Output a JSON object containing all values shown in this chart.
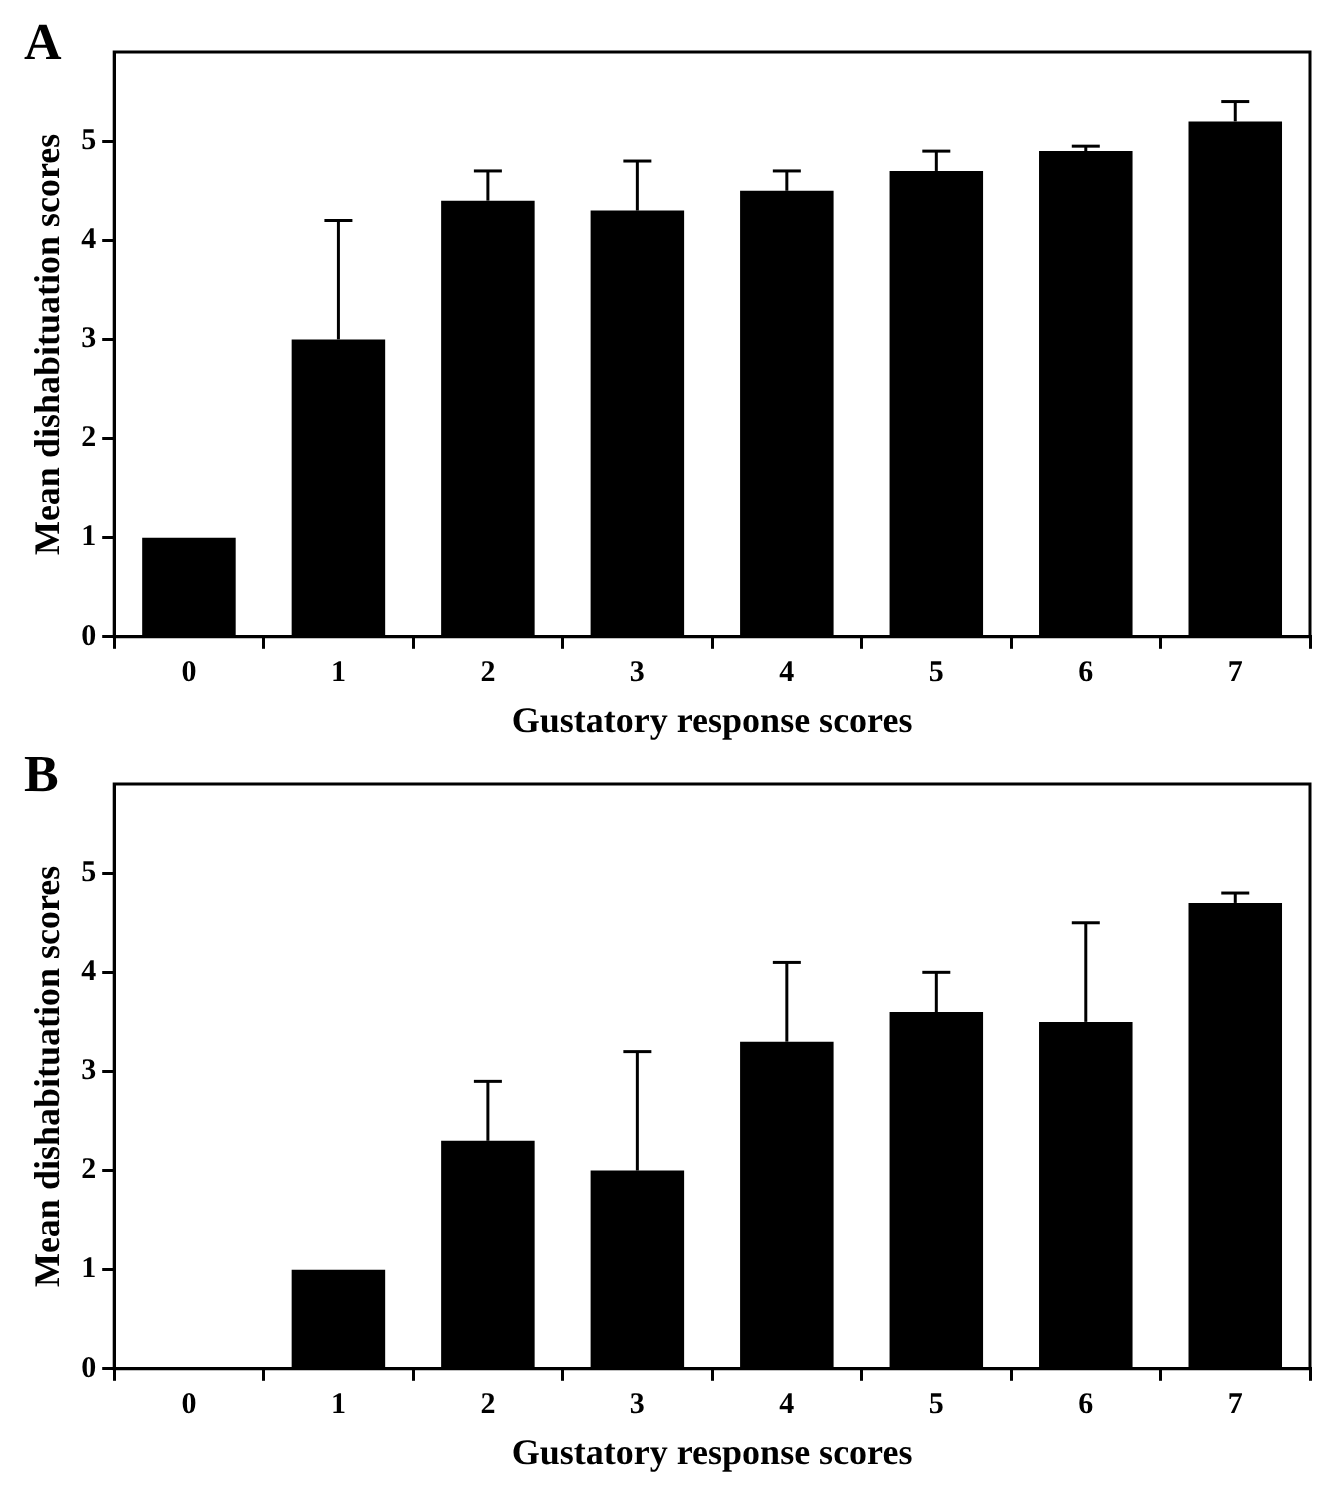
{
  "chart_data": [
    {
      "type": "bar",
      "title": "A",
      "xlabel": "Gustatory response scores",
      "ylabel": "Mean dishabituation scores",
      "categories": [
        "0",
        "1",
        "2",
        "3",
        "4",
        "5",
        "6",
        "7"
      ],
      "values": [
        1,
        3,
        4.4,
        4.3,
        4.5,
        4.7,
        4.9,
        5.2
      ],
      "errors": [
        null,
        [
          3,
          4.2
        ],
        [
          4.4,
          4.7
        ],
        [
          4.3,
          4.8
        ],
        [
          4.5,
          4.7
        ],
        [
          4.7,
          4.9
        ],
        [
          4.9,
          4.95
        ],
        [
          5.2,
          5.4
        ]
      ],
      "color": "#000000",
      "ylim": [
        0,
        5.9
      ],
      "yticks": [
        0,
        1,
        2,
        3,
        4,
        5
      ]
    },
    {
      "type": "bar",
      "title": "B",
      "xlabel": "Gustatory response scores",
      "ylabel": "Mean dishabituation scores",
      "categories": [
        "0",
        "1",
        "2",
        "3",
        "4",
        "5",
        "6",
        "7"
      ],
      "values": [
        0,
        1,
        2.3,
        2,
        3.3,
        3.6,
        3.5,
        4.7
      ],
      "errors": [
        null,
        null,
        [
          2.3,
          2.9
        ],
        [
          2,
          3.2
        ],
        [
          3.3,
          4.1
        ],
        [
          3.6,
          4
        ],
        [
          3.5,
          4.5
        ],
        [
          4.7,
          4.8
        ]
      ],
      "color": "#000000",
      "ylim": [
        0,
        5.9
      ],
      "yticks": [
        0,
        1,
        2,
        3,
        4,
        5
      ]
    }
  ]
}
